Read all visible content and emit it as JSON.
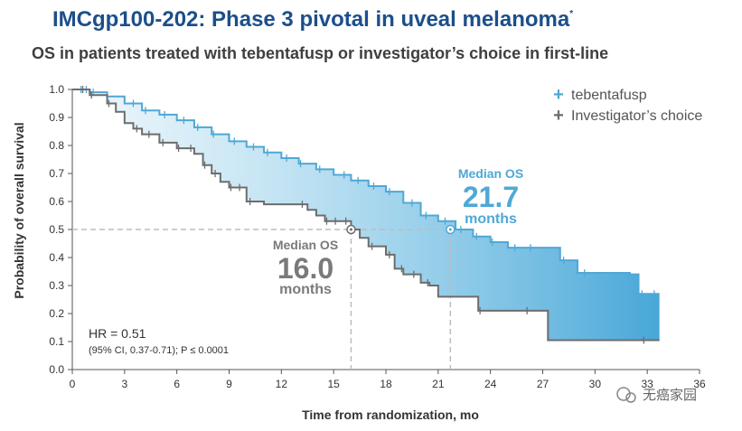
{
  "header": {
    "title": "IMCgp100-202: Phase 3 pivotal in uveal melanoma",
    "title_mark": "*",
    "subtitle": "OS in patients treated with tebentafusp or investigator’s choice in first-line"
  },
  "watermark": "无癌家园",
  "colors": {
    "tebentafusp": "#4fa8d6",
    "investigator": "#6d6d6d",
    "title": "#1c4f8a",
    "median_line": "#bdbdbd"
  },
  "chart_data": {
    "type": "line",
    "chart_subtype": "kaplan-meier step survival curve",
    "xlabel": "Time from randomization, mo",
    "ylabel": "Probability of overall survival",
    "xlim": [
      0,
      36
    ],
    "ylim": [
      0,
      1.0
    ],
    "x_ticks": [
      0,
      3,
      6,
      9,
      12,
      15,
      18,
      21,
      24,
      27,
      30,
      33,
      36
    ],
    "y_ticks": [
      "0.0",
      "0.1",
      "0.2",
      "0.3",
      "0.4",
      "0.5",
      "0.6",
      "0.7",
      "0.8",
      "0.9",
      "1.0"
    ],
    "grid": false,
    "legend_position": "top-right",
    "series": [
      {
        "name": "tebentafusp",
        "color": "#4fa8d6",
        "points": [
          [
            0,
            1.0
          ],
          [
            1,
            0.99
          ],
          [
            2,
            0.975
          ],
          [
            3,
            0.95
          ],
          [
            4,
            0.925
          ],
          [
            5,
            0.91
          ],
          [
            6,
            0.89
          ],
          [
            7,
            0.865
          ],
          [
            8,
            0.84
          ],
          [
            9,
            0.815
          ],
          [
            10,
            0.795
          ],
          [
            11,
            0.775
          ],
          [
            12,
            0.755
          ],
          [
            13,
            0.735
          ],
          [
            14,
            0.715
          ],
          [
            15,
            0.695
          ],
          [
            16,
            0.675
          ],
          [
            17,
            0.655
          ],
          [
            18,
            0.635
          ],
          [
            19,
            0.595
          ],
          [
            20,
            0.55
          ],
          [
            21,
            0.53
          ],
          [
            22,
            0.5
          ],
          [
            23,
            0.475
          ],
          [
            24,
            0.455
          ],
          [
            25,
            0.435
          ],
          [
            27,
            0.435
          ],
          [
            28,
            0.39
          ],
          [
            29,
            0.345
          ],
          [
            31,
            0.345
          ],
          [
            32,
            0.34
          ],
          [
            32.5,
            0.27
          ],
          [
            33.7,
            0.27
          ],
          [
            33.7,
            0.27
          ]
        ],
        "censor_x": [
          0.5,
          0.8,
          1.2,
          3.5,
          4.2,
          5.3,
          6.4,
          7.2,
          8.1,
          9.3,
          10.4,
          11.2,
          12.3,
          13.1,
          14.2,
          15.6,
          16.4,
          17.3,
          18.2,
          19.5,
          20.3,
          21.4,
          22.3,
          23.2,
          24.1,
          25.4,
          26.3,
          28.2,
          29.4,
          32.7,
          33.4
        ]
      },
      {
        "name": "Investigator’s choice",
        "color": "#6d6d6d",
        "points": [
          [
            0,
            1.0
          ],
          [
            1,
            0.98
          ],
          [
            2,
            0.95
          ],
          [
            2.5,
            0.92
          ],
          [
            3,
            0.88
          ],
          [
            3.5,
            0.86
          ],
          [
            4,
            0.84
          ],
          [
            5,
            0.81
          ],
          [
            6,
            0.79
          ],
          [
            7,
            0.77
          ],
          [
            7.5,
            0.73
          ],
          [
            8,
            0.7
          ],
          [
            8.5,
            0.67
          ],
          [
            9,
            0.65
          ],
          [
            10,
            0.6
          ],
          [
            11,
            0.59
          ],
          [
            13,
            0.59
          ],
          [
            13.5,
            0.57
          ],
          [
            14,
            0.55
          ],
          [
            14.5,
            0.53
          ],
          [
            16,
            0.53
          ],
          [
            16,
            0.5
          ],
          [
            16.5,
            0.47
          ],
          [
            17,
            0.44
          ],
          [
            18,
            0.41
          ],
          [
            18.5,
            0.36
          ],
          [
            19,
            0.34
          ],
          [
            20,
            0.31
          ],
          [
            20.5,
            0.3
          ],
          [
            21,
            0.26
          ],
          [
            23,
            0.26
          ],
          [
            23.3,
            0.21
          ],
          [
            25,
            0.21
          ],
          [
            27.3,
            0.21
          ],
          [
            27.3,
            0.105
          ],
          [
            33.7,
            0.105
          ]
        ],
        "censor_x": [
          0.6,
          1.1,
          2.1,
          3.7,
          4.4,
          5.2,
          6.1,
          6.8,
          7.6,
          8.2,
          9.1,
          9.6,
          10.2,
          13.2,
          14.6,
          15.1,
          15.7,
          17.2,
          18.2,
          18.9,
          19.6,
          20.4,
          23.4,
          26.1,
          32.8
        ]
      }
    ],
    "reference_lines": {
      "y": 0.5,
      "x": [
        16.0,
        21.7
      ]
    },
    "annotations": {
      "hr_main": "HR = 0.51",
      "hr_ci": "(95% CI, 0.37-0.71); P ≤ 0.0001",
      "median_label": "Median OS",
      "tebentafusp_median": "21.7",
      "investigator_median": "16.0",
      "unit": "months"
    }
  }
}
